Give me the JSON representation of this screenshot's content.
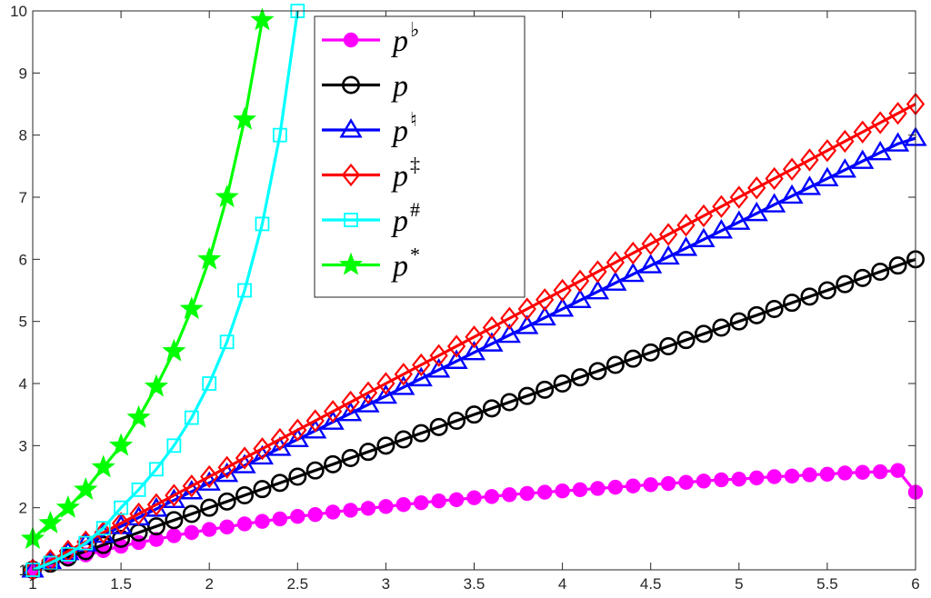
{
  "chart_data": {
    "type": "line",
    "title": "",
    "xlabel": "",
    "ylabel": "",
    "xlim": [
      1,
      6
    ],
    "ylim": [
      1,
      10
    ],
    "x_ticks": [
      1,
      1.5,
      2,
      2.5,
      3,
      3.5,
      4,
      4.5,
      5,
      5.5,
      6
    ],
    "x_tick_labels": [
      "1",
      "1.5",
      "2",
      "2.5",
      "3",
      "3.5",
      "4",
      "4.5",
      "5",
      "5.5",
      "6"
    ],
    "y_ticks": [
      1,
      2,
      3,
      4,
      5,
      6,
      7,
      8,
      9,
      10
    ],
    "y_tick_labels": [
      "1",
      "2",
      "3",
      "4",
      "5",
      "6",
      "7",
      "8",
      "9",
      "10"
    ],
    "grid": false,
    "legend_position": "top-center",
    "series": [
      {
        "name": "p♭",
        "base": "p",
        "sup": "♭",
        "color": "#ff00ff",
        "marker": "filled-circle",
        "x": [
          1,
          1.1,
          1.2,
          1.3,
          1.4,
          1.5,
          1.6,
          1.7,
          1.8,
          1.9,
          2,
          2.1,
          2.2,
          2.3,
          2.4,
          2.5,
          2.6,
          2.7,
          2.8,
          2.9,
          3,
          3.1,
          3.2,
          3.3,
          3.4,
          3.5,
          3.6,
          3.7,
          3.8,
          3.9,
          4,
          4.1,
          4.2,
          4.3,
          4.4,
          4.5,
          4.6,
          4.7,
          4.8,
          4.9,
          5,
          5.1,
          5.2,
          5.3,
          5.4,
          5.5,
          5.6,
          5.7,
          5.8,
          5.9,
          6
        ],
        "y": [
          1,
          1.09,
          1.17,
          1.24,
          1.31,
          1.38,
          1.44,
          1.49,
          1.55,
          1.6,
          1.65,
          1.69,
          1.74,
          1.78,
          1.82,
          1.86,
          1.89,
          1.93,
          1.96,
          1.99,
          2.02,
          2.05,
          2.08,
          2.11,
          2.13,
          2.16,
          2.18,
          2.21,
          2.23,
          2.25,
          2.27,
          2.29,
          2.31,
          2.33,
          2.35,
          2.37,
          2.39,
          2.41,
          2.43,
          2.45,
          2.46,
          2.48,
          2.5,
          2.51,
          2.53,
          2.54,
          2.56,
          2.57,
          2.58,
          2.6,
          2.25
        ]
      },
      {
        "name": "p",
        "base": "p",
        "sup": "",
        "color": "#000000",
        "marker": "open-circle",
        "x": [
          1,
          1.1,
          1.2,
          1.3,
          1.4,
          1.5,
          1.6,
          1.7,
          1.8,
          1.9,
          2,
          2.1,
          2.2,
          2.3,
          2.4,
          2.5,
          2.6,
          2.7,
          2.8,
          2.9,
          3,
          3.1,
          3.2,
          3.3,
          3.4,
          3.5,
          3.6,
          3.7,
          3.8,
          3.9,
          4,
          4.1,
          4.2,
          4.3,
          4.4,
          4.5,
          4.6,
          4.7,
          4.8,
          4.9,
          5,
          5.1,
          5.2,
          5.3,
          5.4,
          5.5,
          5.6,
          5.7,
          5.8,
          5.9,
          6
        ],
        "y": [
          1,
          1.1,
          1.2,
          1.3,
          1.4,
          1.5,
          1.6,
          1.7,
          1.8,
          1.9,
          2,
          2.1,
          2.2,
          2.3,
          2.4,
          2.5,
          2.6,
          2.7,
          2.8,
          2.9,
          3,
          3.1,
          3.2,
          3.3,
          3.4,
          3.5,
          3.6,
          3.7,
          3.8,
          3.9,
          4,
          4.1,
          4.2,
          4.3,
          4.4,
          4.5,
          4.6,
          4.7,
          4.8,
          4.9,
          5,
          5.1,
          5.2,
          5.3,
          5.4,
          5.5,
          5.6,
          5.7,
          5.8,
          5.9,
          6
        ]
      },
      {
        "name": "p♮",
        "base": "p",
        "sup": "♮",
        "color": "#0000ff",
        "marker": "open-triangle",
        "x": [
          1,
          1.1,
          1.2,
          1.3,
          1.4,
          1.5,
          1.6,
          1.7,
          1.8,
          1.9,
          2,
          2.1,
          2.2,
          2.3,
          2.4,
          2.5,
          2.6,
          2.7,
          2.8,
          2.9,
          3,
          3.1,
          3.2,
          3.3,
          3.4,
          3.5,
          3.6,
          3.7,
          3.8,
          3.9,
          4,
          4.1,
          4.2,
          4.3,
          4.4,
          4.5,
          4.6,
          4.7,
          4.8,
          4.9,
          5,
          5.1,
          5.2,
          5.3,
          5.4,
          5.5,
          5.6,
          5.7,
          5.8,
          5.9,
          6
        ],
        "y": [
          1,
          1.14,
          1.28,
          1.42,
          1.56,
          1.7,
          1.84,
          1.98,
          2.12,
          2.26,
          2.4,
          2.54,
          2.68,
          2.82,
          2.96,
          3.1,
          3.24,
          3.38,
          3.52,
          3.66,
          3.8,
          3.94,
          4.08,
          4.22,
          4.36,
          4.5,
          4.64,
          4.78,
          4.92,
          5.06,
          5.2,
          5.34,
          5.48,
          5.62,
          5.76,
          5.9,
          6.04,
          6.18,
          6.32,
          6.46,
          6.6,
          6.74,
          6.88,
          7.02,
          7.16,
          7.3,
          7.44,
          7.58,
          7.72,
          7.86,
          7.95
        ]
      },
      {
        "name": "p‡",
        "base": "p",
        "sup": "‡",
        "color": "#ff0000",
        "marker": "open-diamond",
        "x": [
          1,
          1.1,
          1.2,
          1.3,
          1.4,
          1.5,
          1.6,
          1.7,
          1.8,
          1.9,
          2,
          2.1,
          2.2,
          2.3,
          2.4,
          2.5,
          2.6,
          2.7,
          2.8,
          2.9,
          3,
          3.1,
          3.2,
          3.3,
          3.4,
          3.5,
          3.6,
          3.7,
          3.8,
          3.9,
          4,
          4.1,
          4.2,
          4.3,
          4.4,
          4.5,
          4.6,
          4.7,
          4.8,
          4.9,
          5,
          5.1,
          5.2,
          5.3,
          5.4,
          5.5,
          5.6,
          5.7,
          5.8,
          5.9,
          6
        ],
        "y": [
          1,
          1.15,
          1.3,
          1.45,
          1.6,
          1.75,
          1.9,
          2.05,
          2.2,
          2.35,
          2.5,
          2.65,
          2.8,
          2.95,
          3.1,
          3.25,
          3.4,
          3.55,
          3.7,
          3.85,
          4,
          4.15,
          4.3,
          4.45,
          4.6,
          4.75,
          4.9,
          5.05,
          5.2,
          5.35,
          5.5,
          5.65,
          5.8,
          5.95,
          6.1,
          6.25,
          6.4,
          6.55,
          6.7,
          6.85,
          7,
          7.15,
          7.3,
          7.45,
          7.6,
          7.75,
          7.9,
          8.05,
          8.2,
          8.35,
          8.5
        ]
      },
      {
        "name": "p#",
        "base": "p",
        "sup": "#",
        "color": "#00ffff",
        "marker": "open-square",
        "x": [
          1,
          1.1,
          1.2,
          1.3,
          1.4,
          1.5,
          1.6,
          1.7,
          1.8,
          1.9,
          2,
          2.1,
          2.2,
          2.3,
          2.4,
          2.5
        ],
        "y": [
          1,
          1.11,
          1.25,
          1.43,
          1.67,
          2,
          2.29,
          2.62,
          3,
          3.45,
          4,
          4.67,
          5.5,
          6.57,
          8,
          10
        ]
      },
      {
        "name": "p*",
        "base": "p",
        "sup": "*",
        "color": "#00ff00",
        "marker": "filled-star",
        "x": [
          1,
          1.1,
          1.2,
          1.3,
          1.4,
          1.5,
          1.6,
          1.7,
          1.8,
          1.9,
          2,
          2.1,
          2.2,
          2.3
        ],
        "y": [
          1.5,
          1.75,
          2,
          2.29,
          2.65,
          3,
          3.45,
          3.95,
          4.52,
          5.2,
          6,
          7,
          8.25,
          9.85
        ]
      }
    ]
  }
}
